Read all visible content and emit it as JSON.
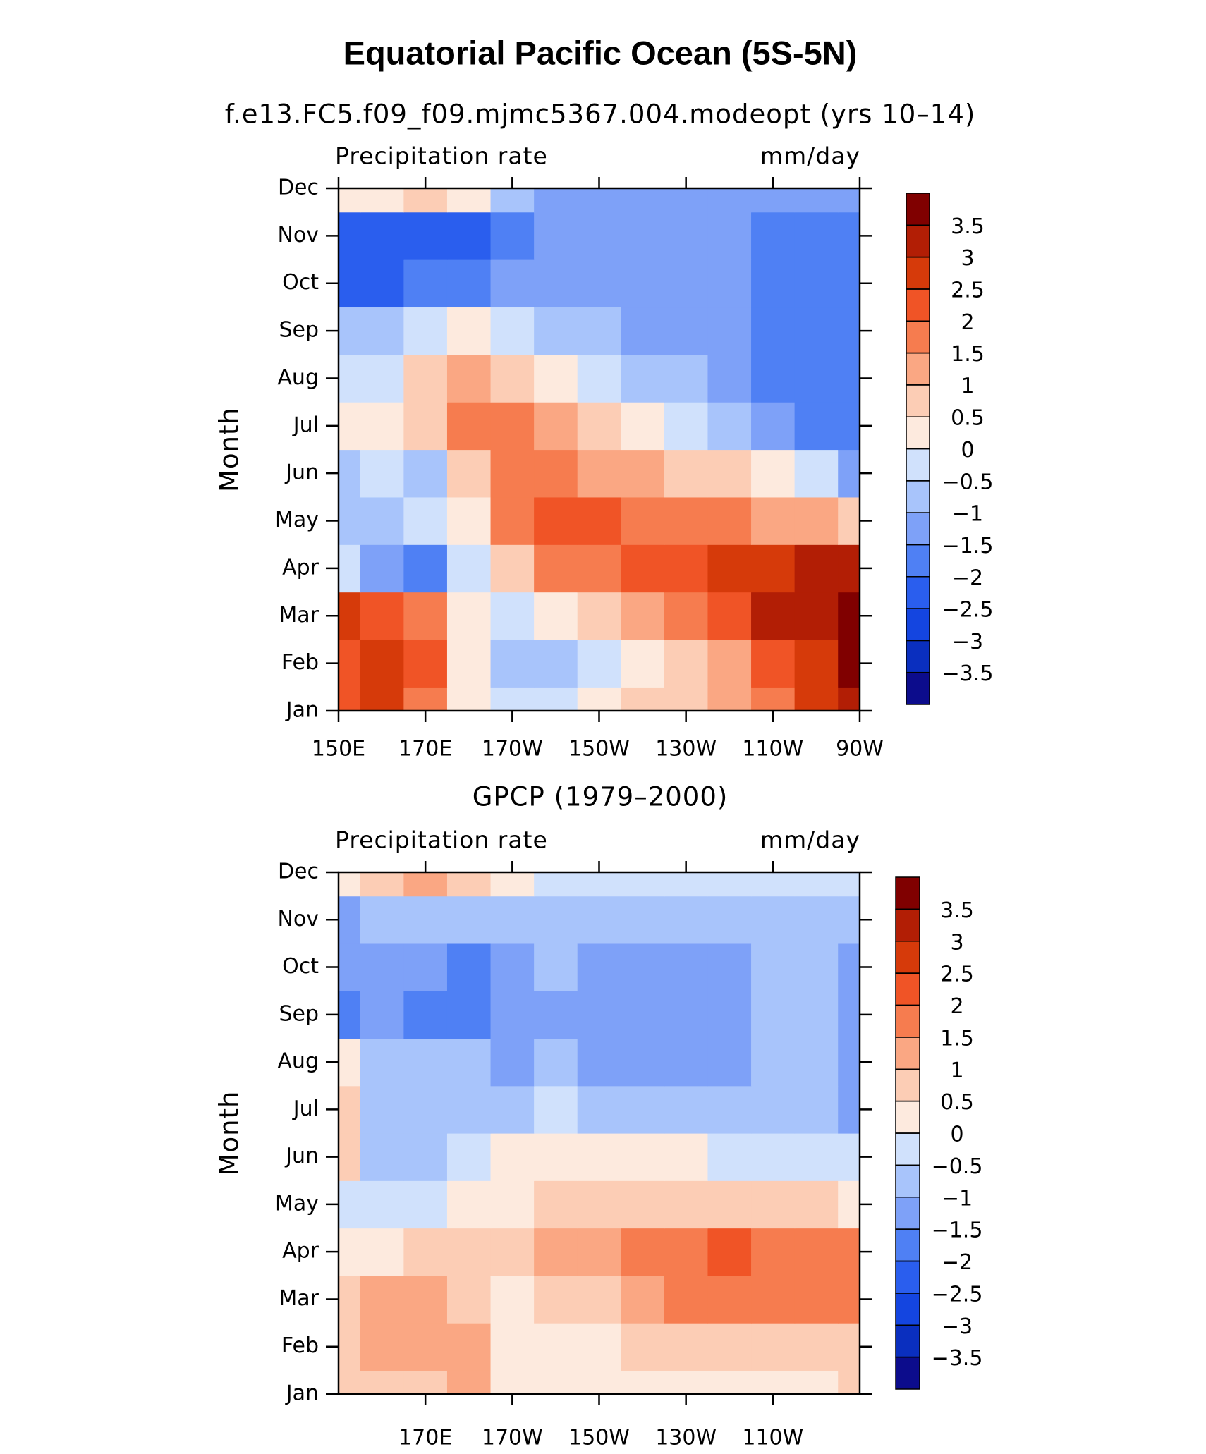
{
  "chart_data": [
    {
      "type": "contour",
      "title": "Equatorial Pacific Ocean (5S-5N)",
      "subtitle": "f.e13.FC5.f09_f09.mjmc5367.004.modeopt (yrs 10–14)",
      "variable": "Precipitation rate",
      "units": "mm/day",
      "ylabel": "Month",
      "x": [
        150,
        160,
        170,
        180,
        190,
        200,
        210,
        220,
        230,
        240,
        250,
        260,
        270
      ],
      "xlim": [
        150,
        270
      ],
      "xticks": [
        {
          "value": 150,
          "label": "150E"
        },
        {
          "value": 170,
          "label": "170E"
        },
        {
          "value": 190,
          "label": "170W"
        },
        {
          "value": 210,
          "label": "150W"
        },
        {
          "value": 230,
          "label": "130W"
        },
        {
          "value": 250,
          "label": "110W"
        },
        {
          "value": 270,
          "label": "90W"
        }
      ],
      "categories": [
        "Jan",
        "Feb",
        "Mar",
        "Apr",
        "May",
        "Jun",
        "Jul",
        "Aug",
        "Sep",
        "Oct",
        "Nov",
        "Dec"
      ],
      "values": [
        [
          2.3,
          2.5,
          1.8,
          0.3,
          -0.3,
          -0.3,
          0.2,
          0.5,
          0.8,
          1.2,
          1.8,
          2.5,
          3.2
        ],
        [
          2.3,
          2.6,
          2.0,
          0.3,
          -0.8,
          -0.8,
          -0.3,
          0.3,
          0.8,
          1.3,
          2.0,
          2.8,
          3.6
        ],
        [
          2.6,
          2.2,
          1.8,
          0.2,
          -0.3,
          0.3,
          0.8,
          1.3,
          1.8,
          2.3,
          3.0,
          3.3,
          3.8
        ],
        [
          -0.3,
          -1.2,
          -1.6,
          -0.3,
          0.8,
          1.6,
          1.8,
          2.2,
          2.3,
          2.5,
          2.8,
          3.0,
          3.0
        ],
        [
          -0.8,
          -0.8,
          -0.3,
          0.3,
          1.8,
          2.3,
          2.2,
          1.8,
          1.8,
          1.6,
          1.3,
          1.0,
          0.5
        ],
        [
          -0.8,
          -0.5,
          -0.8,
          0.8,
          1.5,
          1.5,
          1.3,
          1.0,
          0.8,
          0.5,
          0.3,
          -0.3,
          -1.2
        ],
        [
          0.3,
          0.3,
          0.8,
          1.5,
          1.8,
          1.2,
          0.8,
          0.3,
          -0.3,
          -0.8,
          -1.3,
          -1.8,
          -2.0
        ],
        [
          -0.3,
          -0.3,
          0.8,
          1.2,
          0.8,
          0.3,
          -0.3,
          -0.8,
          -1.0,
          -1.3,
          -1.8,
          -1.8,
          -2.0
        ],
        [
          -0.8,
          -0.8,
          -0.3,
          0.3,
          -0.3,
          -0.8,
          -1.0,
          -1.2,
          -1.3,
          -1.3,
          -1.8,
          -1.8,
          -2.0
        ],
        [
          -2.2,
          -2.2,
          -1.8,
          -1.6,
          -1.2,
          -1.2,
          -1.2,
          -1.2,
          -1.2,
          -1.2,
          -1.6,
          -1.8,
          -2.0
        ],
        [
          -2.3,
          -2.3,
          -2.3,
          -2.2,
          -1.8,
          -1.3,
          -1.2,
          -1.2,
          -1.2,
          -1.2,
          -1.6,
          -1.8,
          -1.8
        ],
        [
          0.3,
          0.3,
          0.8,
          0.3,
          -0.8,
          -1.2,
          -1.2,
          -1.2,
          -1.2,
          -1.2,
          -1.2,
          -1.2,
          -1.3
        ]
      ],
      "levels": [
        -3.5,
        -3,
        -2.5,
        -2,
        -1.5,
        -1,
        -0.5,
        0,
        0.5,
        1,
        1.5,
        2,
        2.5,
        3,
        3.5
      ],
      "level_labels": [
        {
          "value": -3.5,
          "label": "−3.5"
        },
        {
          "value": -3,
          "label": "−3"
        },
        {
          "value": -2.5,
          "label": "−2.5"
        },
        {
          "value": -2,
          "label": "−2"
        },
        {
          "value": -1.5,
          "label": "−1.5"
        },
        {
          "value": -1,
          "label": "−1"
        },
        {
          "value": -0.5,
          "label": "−0.5"
        },
        0,
        0.5,
        1,
        1.5,
        2,
        2.5,
        3,
        3.5
      ],
      "colors": [
        "#0c0c8c",
        "#0a2fbf",
        "#1445e0",
        "#2a5eee",
        "#4f80f4",
        "#7ea1f8",
        "#a8c4fb",
        "#d0e1fc",
        "#fdeade",
        "#fccdb5",
        "#faa783",
        "#f67c4f",
        "#f05426",
        "#d63a0a",
        "#b21e05",
        "#800000"
      ]
    },
    {
      "type": "contour",
      "subtitle": "GPCP (1979–2000)",
      "variable": "Precipitation rate",
      "units": "mm/day",
      "ylabel": "Month",
      "x": [
        150,
        160,
        170,
        180,
        190,
        200,
        210,
        220,
        230,
        240,
        250,
        260,
        270
      ],
      "xlim": [
        150,
        270
      ],
      "xticks": [
        {
          "value": 170,
          "label": "170E"
        },
        {
          "value": 190,
          "label": "170W"
        },
        {
          "value": 210,
          "label": "150W"
        },
        {
          "value": 230,
          "label": "130W"
        },
        {
          "value": 250,
          "label": "110W"
        }
      ],
      "categories": [
        "Jan",
        "Feb",
        "Mar",
        "Apr",
        "May",
        "Jun",
        "Jul",
        "Aug",
        "Sep",
        "Oct",
        "Nov",
        "Dec"
      ],
      "values": [
        [
          0.8,
          0.8,
          0.8,
          1.2,
          0.3,
          0.3,
          0.3,
          0.3,
          0.3,
          0.2,
          0.3,
          0.3,
          0.5
        ],
        [
          0.8,
          1.2,
          1.3,
          1.0,
          0.3,
          0.3,
          0.3,
          0.5,
          0.5,
          0.5,
          0.5,
          0.8,
          0.8
        ],
        [
          0.8,
          1.2,
          1.3,
          0.8,
          0.3,
          0.5,
          0.8,
          1.3,
          1.6,
          1.8,
          1.8,
          1.8,
          1.6
        ],
        [
          0.3,
          0.3,
          0.8,
          0.8,
          0.8,
          1.0,
          1.3,
          1.8,
          1.8,
          2.0,
          1.6,
          1.8,
          1.6
        ],
        [
          -0.3,
          -0.3,
          -0.3,
          0.3,
          0.3,
          0.5,
          0.6,
          0.8,
          0.8,
          0.8,
          0.8,
          0.5,
          0.3
        ],
        [
          0.8,
          -0.8,
          -0.8,
          -0.3,
          0.3,
          0.3,
          0.3,
          0.3,
          0.3,
          -0.3,
          -0.3,
          -0.3,
          -0.3
        ],
        [
          0.8,
          -0.8,
          -0.8,
          -0.8,
          -0.8,
          -0.3,
          -0.8,
          -0.8,
          -0.8,
          -0.8,
          -0.8,
          -0.8,
          -1.2
        ],
        [
          0.3,
          -0.8,
          -0.8,
          -0.8,
          -1.2,
          -0.8,
          -1.2,
          -1.3,
          -1.3,
          -1.3,
          -0.8,
          -1.0,
          -1.2
        ],
        [
          -1.6,
          -1.2,
          -1.8,
          -1.6,
          -1.2,
          -1.2,
          -1.2,
          -1.3,
          -1.3,
          -1.3,
          -0.8,
          -0.8,
          -1.2
        ],
        [
          -1.2,
          -1.2,
          -1.3,
          -1.8,
          -1.2,
          -0.8,
          -1.2,
          -1.2,
          -1.2,
          -1.2,
          -0.8,
          -0.8,
          -1.2
        ],
        [
          -1.2,
          -0.8,
          -0.8,
          -0.8,
          -0.8,
          -0.8,
          -0.8,
          -0.8,
          -0.8,
          -0.8,
          -0.8,
          -0.8,
          -0.8
        ],
        [
          0.3,
          0.8,
          1.3,
          0.8,
          0.3,
          -0.3,
          -0.3,
          -0.3,
          -0.3,
          -0.3,
          -0.3,
          -0.3,
          -0.3
        ]
      ],
      "levels": [
        -3.5,
        -3,
        -2.5,
        -2,
        -1.5,
        -1,
        -0.5,
        0,
        0.5,
        1,
        1.5,
        2,
        2.5,
        3,
        3.5
      ],
      "level_labels": [
        {
          "value": -3.5,
          "label": "−3.5"
        },
        {
          "value": -3,
          "label": "−3"
        },
        {
          "value": -2.5,
          "label": "−2.5"
        },
        {
          "value": -2,
          "label": "−2"
        },
        {
          "value": -1.5,
          "label": "−1.5"
        },
        {
          "value": -1,
          "label": "−1"
        },
        {
          "value": -0.5,
          "label": "−0.5"
        },
        0,
        0.5,
        1,
        1.5,
        2,
        2.5,
        3,
        3.5
      ],
      "colors": [
        "#0c0c8c",
        "#0a2fbf",
        "#1445e0",
        "#2a5eee",
        "#4f80f4",
        "#7ea1f8",
        "#a8c4fb",
        "#d0e1fc",
        "#fdeade",
        "#fccdb5",
        "#faa783",
        "#f67c4f",
        "#f05426",
        "#d63a0a",
        "#b21e05",
        "#800000"
      ]
    }
  ]
}
